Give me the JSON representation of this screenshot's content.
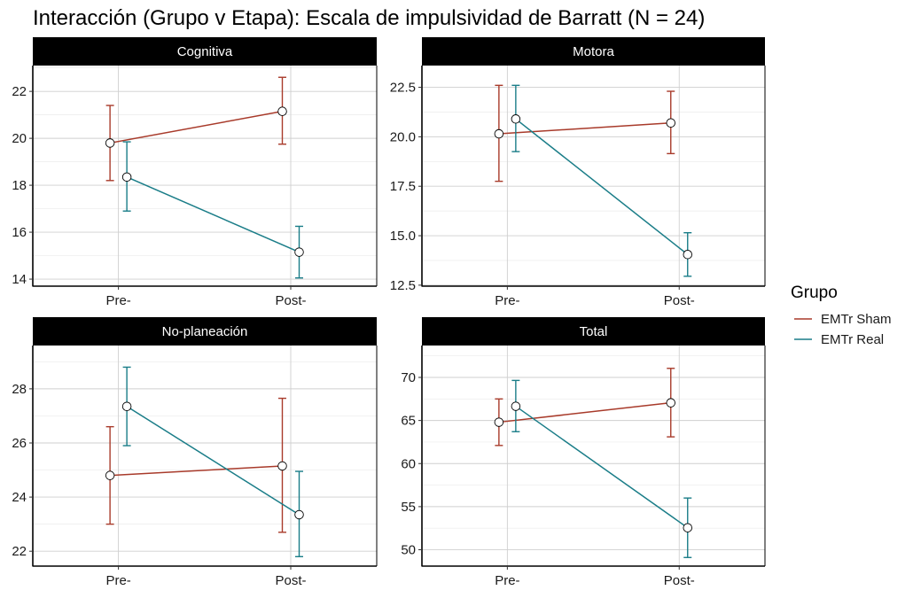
{
  "title": "Interacción (Grupo v Etapa): Escala de impulsividad de Barratt (N = 24)",
  "legend": {
    "title": "Grupo",
    "items": [
      {
        "label": "EMTr Sham",
        "color": "#a83a2a"
      },
      {
        "label": "EMTr Real",
        "color": "#1a7d88"
      }
    ]
  },
  "chart_data": [
    {
      "type": "line",
      "panel": "Cognitiva",
      "categories": [
        "Pre-",
        "Post-"
      ],
      "yticks": [
        14,
        16,
        18,
        20,
        22
      ],
      "ytick_labels": [
        "14",
        "16",
        "18",
        "20",
        "22"
      ],
      "ylim": [
        13.7,
        23.1
      ],
      "grid": true,
      "series": [
        {
          "name": "EMTr Sham",
          "values": [
            19.8,
            21.15
          ],
          "lower": [
            18.2,
            19.75
          ],
          "upper": [
            21.4,
            22.6
          ]
        },
        {
          "name": "EMTr Real",
          "values": [
            18.35,
            15.15
          ],
          "lower": [
            16.9,
            14.05
          ],
          "upper": [
            19.85,
            16.25
          ]
        }
      ]
    },
    {
      "type": "line",
      "panel": "Motora",
      "categories": [
        "Pre-",
        "Post-"
      ],
      "yticks": [
        12.5,
        15.0,
        17.5,
        20.0,
        22.5
      ],
      "ytick_labels": [
        "12.5",
        "15.0",
        "17.5",
        "20.0",
        "22.5"
      ],
      "ylim": [
        12.45,
        23.6
      ],
      "grid": true,
      "series": [
        {
          "name": "EMTr Sham",
          "values": [
            20.15,
            20.7
          ],
          "lower": [
            17.75,
            19.15
          ],
          "upper": [
            22.6,
            22.3
          ]
        },
        {
          "name": "EMTr Real",
          "values": [
            20.9,
            14.05
          ],
          "lower": [
            19.25,
            12.95
          ],
          "upper": [
            22.6,
            15.15
          ]
        }
      ]
    },
    {
      "type": "line",
      "panel": "No-planeación",
      "categories": [
        "Pre-",
        "Post-"
      ],
      "yticks": [
        22,
        24,
        26,
        28
      ],
      "ytick_labels": [
        "22",
        "24",
        "26",
        "28"
      ],
      "ylim": [
        21.45,
        29.6
      ],
      "grid": true,
      "series": [
        {
          "name": "EMTr Sham",
          "values": [
            24.8,
            25.15
          ],
          "lower": [
            23.0,
            22.7
          ],
          "upper": [
            26.6,
            27.65
          ]
        },
        {
          "name": "EMTr Real",
          "values": [
            27.35,
            23.35
          ],
          "lower": [
            25.9,
            21.8
          ],
          "upper": [
            28.8,
            24.95
          ]
        }
      ]
    },
    {
      "type": "line",
      "panel": "Total",
      "categories": [
        "Pre-",
        "Post-"
      ],
      "yticks": [
        50,
        55,
        60,
        65,
        70
      ],
      "ytick_labels": [
        "50",
        "55",
        "60",
        "65",
        "70"
      ],
      "ylim": [
        48.1,
        73.7
      ],
      "grid": true,
      "series": [
        {
          "name": "EMTr Sham",
          "values": [
            64.8,
            67.05
          ],
          "lower": [
            62.1,
            63.1
          ],
          "upper": [
            67.5,
            71.05
          ]
        },
        {
          "name": "EMTr Real",
          "values": [
            66.65,
            52.55
          ],
          "lower": [
            63.7,
            49.1
          ],
          "upper": [
            69.65,
            56.0
          ]
        }
      ]
    }
  ]
}
